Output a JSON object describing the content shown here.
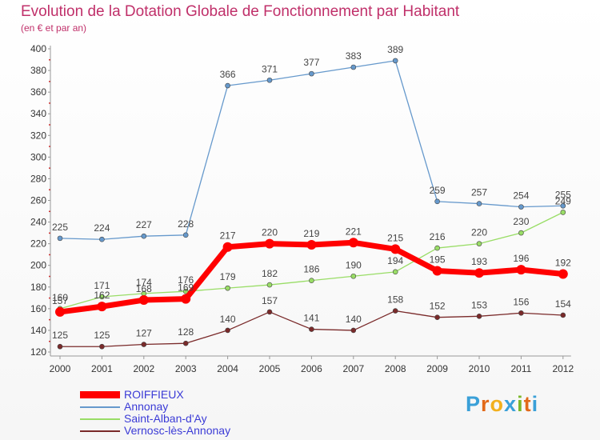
{
  "title": "Evolution de la Dotation Globale de Fonctionnement par Habitant",
  "subtitle": "(en € et par an)",
  "logo": {
    "text": "Proxiti",
    "colors": [
      "#3aa0d8",
      "#e26a1a",
      "#f2b01e",
      "#3aa0d8",
      "#7ab829",
      "#e26a1a",
      "#3aa0d8"
    ]
  },
  "chart_data": {
    "type": "line",
    "x": [
      "2000",
      "2001",
      "2002",
      "2003",
      "2004",
      "2005",
      "2006",
      "2007",
      "2008",
      "2009",
      "2010",
      "2011",
      "2012"
    ],
    "ylim": [
      120,
      400
    ],
    "yticks": [
      120,
      140,
      160,
      180,
      200,
      220,
      240,
      260,
      280,
      300,
      320,
      340,
      360,
      380,
      400
    ],
    "grid": false,
    "legend_position": "bottom-left",
    "series": [
      {
        "name": "ROIFFIEUX",
        "color": "#ff0000",
        "values": [
          157,
          162,
          168,
          169,
          217,
          220,
          219,
          221,
          215,
          195,
          193,
          196,
          192
        ]
      },
      {
        "name": "Annonay",
        "color": "#6699cc",
        "values": [
          225,
          224,
          227,
          228,
          366,
          371,
          377,
          383,
          389,
          259,
          257,
          254,
          255
        ]
      },
      {
        "name": "Saint-Alban-d'Ay",
        "color": "#99dd66",
        "values": [
          160,
          171,
          174,
          176,
          179,
          182,
          186,
          190,
          194,
          216,
          220,
          230,
          249
        ]
      },
      {
        "name": "Vernosc-lès-Annonay",
        "color": "#7a2a2a",
        "values": [
          125,
          125,
          127,
          128,
          140,
          157,
          141,
          140,
          158,
          152,
          153,
          156,
          154
        ]
      }
    ]
  }
}
